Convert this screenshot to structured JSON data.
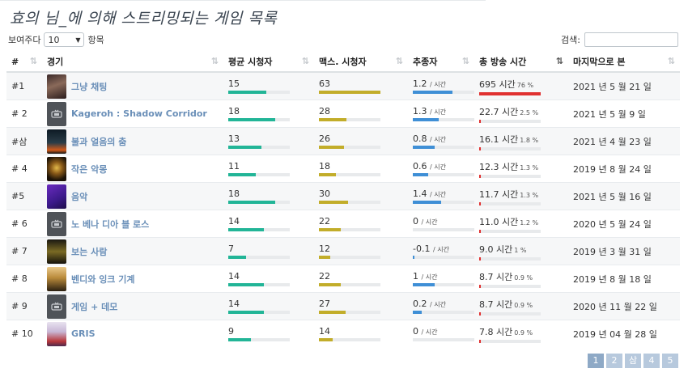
{
  "page": {
    "title": "효의 님_에 의해 스트리밍되는 게임 목록"
  },
  "controls": {
    "length_prefix": "보여주다",
    "length_value": "10",
    "length_suffix": "항목",
    "search_label": "검색:",
    "search_value": ""
  },
  "columns": {
    "rank": "#",
    "game": "경기",
    "avg": "평균 시청자",
    "max": "맥스. 시청자",
    "follow": "추종자",
    "total": "총 방송 시간",
    "last": "마지막으로 본"
  },
  "rows": [
    {
      "rank": "#1",
      "name": "그냥 채팅",
      "avg": "15",
      "avg_pct": 0.62,
      "max": "63",
      "max_pct": 1.0,
      "follow": "1.2",
      "follow_unit": "/ 시간",
      "follow_pct": 0.65,
      "total": "695 시간",
      "total_pct_label": "76 %",
      "total_pct": 1.0,
      "last": "2021 년 5 월 21 일",
      "thumb": "chat"
    },
    {
      "rank": "# 2",
      "name": "Kageroh : Shadow Corridor",
      "avg": "18",
      "avg_pct": 0.76,
      "max": "28",
      "max_pct": 0.45,
      "follow": "1.3",
      "follow_unit": "/ 시간",
      "follow_pct": 0.42,
      "total": "22.7 시간",
      "total_pct_label": "2.5 %",
      "total_pct": 0.03,
      "last": "2021 년 5 월 9 일",
      "thumb": "default"
    },
    {
      "rank": "#삼",
      "name": "불과 얼음의 춤",
      "avg": "13",
      "avg_pct": 0.54,
      "max": "26",
      "max_pct": 0.41,
      "follow": "0.8",
      "follow_unit": "/ 시간",
      "follow_pct": 0.35,
      "total": "16.1 시간",
      "total_pct_label": "1.8 %",
      "total_pct": 0.02,
      "last": "2021 년 4 월 23 일",
      "thumb": "fire"
    },
    {
      "rank": "# 4",
      "name": "작은 악몽",
      "avg": "11",
      "avg_pct": 0.45,
      "max": "18",
      "max_pct": 0.28,
      "follow": "0.6",
      "follow_unit": "/ 시간",
      "follow_pct": 0.25,
      "total": "12.3 시간",
      "total_pct_label": "1.3 %",
      "total_pct": 0.015,
      "last": "2019 년 8 월 24 일",
      "thumb": "nightmare"
    },
    {
      "rank": "#5",
      "name": "음악",
      "avg": "18",
      "avg_pct": 0.76,
      "max": "30",
      "max_pct": 0.48,
      "follow": "1.4",
      "follow_unit": "/ 시간",
      "follow_pct": 0.46,
      "total": "11.7 시간",
      "total_pct_label": "1.3 %",
      "total_pct": 0.015,
      "last": "2021 년 5 월 16 일",
      "thumb": "music"
    },
    {
      "rank": "# 6",
      "name": "노 베나 디아 블 로스",
      "avg": "14",
      "avg_pct": 0.58,
      "max": "22",
      "max_pct": 0.35,
      "follow": "0",
      "follow_unit": "/ 시간",
      "follow_pct": 0.0,
      "total": "11.0 시간",
      "total_pct_label": "1.2 %",
      "total_pct": 0.015,
      "last": "2020 년 5 월 24 일",
      "thumb": "default"
    },
    {
      "rank": "# 7",
      "name": "보는 사람",
      "avg": "7",
      "avg_pct": 0.29,
      "max": "12",
      "max_pct": 0.19,
      "follow": "-0.1",
      "follow_unit": "/ 시간",
      "follow_pct": 0.02,
      "total": "9.0 시간",
      "total_pct_label": "1 %",
      "total_pct": 0.012,
      "last": "2019 년 3 월 31 일",
      "thumb": "observer"
    },
    {
      "rank": "# 8",
      "name": "벤디와 잉크 기계",
      "avg": "14",
      "avg_pct": 0.58,
      "max": "22",
      "max_pct": 0.35,
      "follow": "1",
      "follow_unit": "/ 시간",
      "follow_pct": 0.35,
      "total": "8.7 시간",
      "total_pct_label": "0.9 %",
      "total_pct": 0.01,
      "last": "2019 년 8 월 18 일",
      "thumb": "bendy"
    },
    {
      "rank": "# 9",
      "name": "게임 + 데모",
      "avg": "14",
      "avg_pct": 0.58,
      "max": "27",
      "max_pct": 0.43,
      "follow": "0.2",
      "follow_unit": "/ 시간",
      "follow_pct": 0.15,
      "total": "8.7 시간",
      "total_pct_label": "0.9 %",
      "total_pct": 0.01,
      "last": "2020 년 11 월 22 일",
      "thumb": "default"
    },
    {
      "rank": "# 10",
      "name": "GRIS",
      "avg": "9",
      "avg_pct": 0.37,
      "max": "14",
      "max_pct": 0.22,
      "follow": "0",
      "follow_unit": "/ 시간",
      "follow_pct": 0.0,
      "total": "7.8 시간",
      "total_pct_label": "0.9 %",
      "total_pct": 0.01,
      "last": "2019 년 04 월 28 일",
      "thumb": "gris"
    }
  ],
  "pagination": {
    "pages": [
      "1",
      "2",
      "삼",
      "4",
      "5"
    ],
    "current": "1"
  },
  "colors": {
    "avg_bar": "#22b597",
    "max_bar": "#c2ad2a",
    "follow_bar": "#3f8fd6",
    "total_bar": "#e03131",
    "link": "#6a8fb8"
  }
}
